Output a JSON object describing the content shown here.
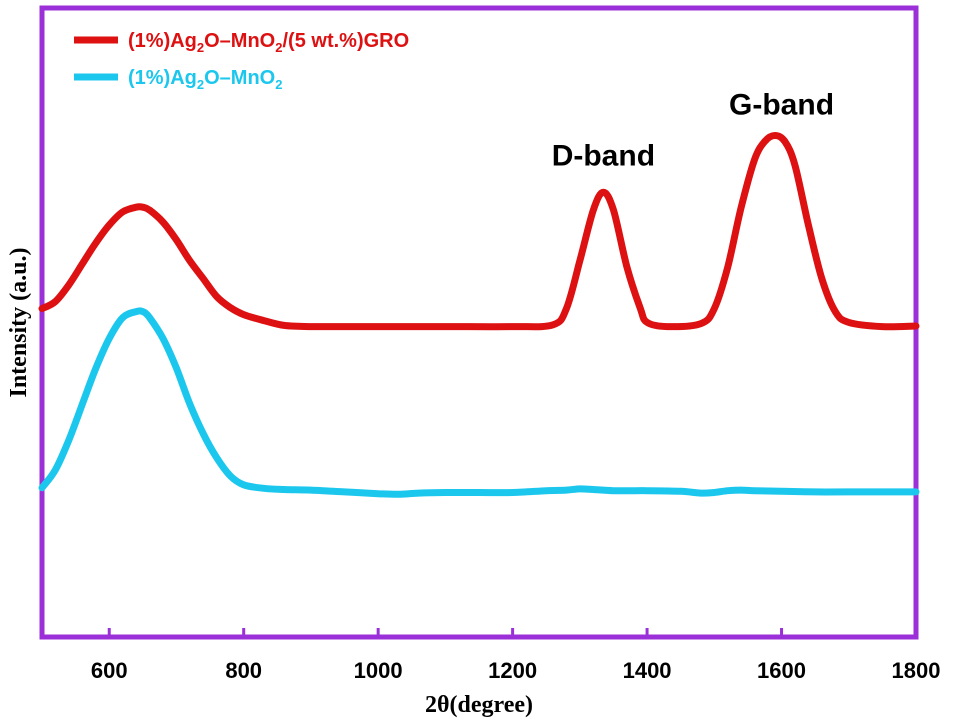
{
  "chart_data": {
    "type": "line",
    "xlabel": "2θ(degree)",
    "ylabel": "Intensity (a.u.)",
    "xlim": [
      500,
      1800
    ],
    "ylim": [
      0,
      1
    ],
    "x_ticks": [
      600,
      800,
      1000,
      1200,
      1400,
      1600,
      1800
    ],
    "grid": false,
    "legend_position": "top-left",
    "frame_color": "#9b30d9",
    "series": [
      {
        "name_parts": [
          {
            "t": "(1%)Ag"
          },
          {
            "t": "2",
            "sub": true
          },
          {
            "t": "O–MnO"
          },
          {
            "t": "2",
            "sub": true
          },
          {
            "t": "/(5 wt.%)GRO"
          }
        ],
        "color": "#dd1111",
        "x": [
          500,
          520,
          540,
          560,
          580,
          600,
          620,
          640,
          650,
          660,
          680,
          700,
          720,
          740,
          760,
          780,
          800,
          830,
          860,
          900,
          1000,
          1100,
          1200,
          1260,
          1280,
          1300,
          1320,
          1335,
          1350,
          1370,
          1390,
          1400,
          1430,
          1480,
          1500,
          1520,
          1540,
          1560,
          1575,
          1590,
          1605,
          1620,
          1640,
          1660,
          1680,
          1700,
          1750,
          1800
        ],
        "y": [
          0.55,
          0.562,
          0.59,
          0.625,
          0.66,
          0.69,
          0.712,
          0.72,
          0.72,
          0.715,
          0.695,
          0.665,
          0.63,
          0.6,
          0.57,
          0.552,
          0.54,
          0.53,
          0.522,
          0.52,
          0.52,
          0.52,
          0.52,
          0.523,
          0.55,
          0.63,
          0.715,
          0.745,
          0.715,
          0.62,
          0.55,
          0.527,
          0.52,
          0.525,
          0.55,
          0.62,
          0.72,
          0.8,
          0.83,
          0.84,
          0.83,
          0.79,
          0.69,
          0.6,
          0.545,
          0.527,
          0.52,
          0.521
        ]
      },
      {
        "name_parts": [
          {
            "t": "(1%)Ag"
          },
          {
            "t": "2",
            "sub": true
          },
          {
            "t": "O–MnO"
          },
          {
            "t": "2",
            "sub": true
          }
        ],
        "color": "#1cc7ee",
        "x": [
          500,
          520,
          540,
          560,
          580,
          600,
          620,
          640,
          650,
          660,
          680,
          700,
          720,
          740,
          760,
          780,
          800,
          830,
          860,
          900,
          950,
          1000,
          1030,
          1060,
          1100,
          1150,
          1200,
          1250,
          1280,
          1300,
          1320,
          1350,
          1400,
          1450,
          1480,
          1500,
          1520,
          1540,
          1560,
          1600,
          1650,
          1700,
          1800
        ],
        "y": [
          0.25,
          0.28,
          0.33,
          0.39,
          0.45,
          0.5,
          0.535,
          0.545,
          0.545,
          0.535,
          0.5,
          0.45,
          0.39,
          0.34,
          0.3,
          0.27,
          0.255,
          0.249,
          0.247,
          0.246,
          0.243,
          0.24,
          0.239,
          0.241,
          0.242,
          0.242,
          0.242,
          0.245,
          0.246,
          0.248,
          0.247,
          0.245,
          0.245,
          0.244,
          0.241,
          0.242,
          0.245,
          0.246,
          0.245,
          0.244,
          0.243,
          0.243,
          0.243
        ]
      }
    ],
    "annotations": [
      {
        "text": "D-band",
        "x": 1335,
        "y": 0.79
      },
      {
        "text": "G-band",
        "x": 1600,
        "y": 0.875
      }
    ]
  }
}
